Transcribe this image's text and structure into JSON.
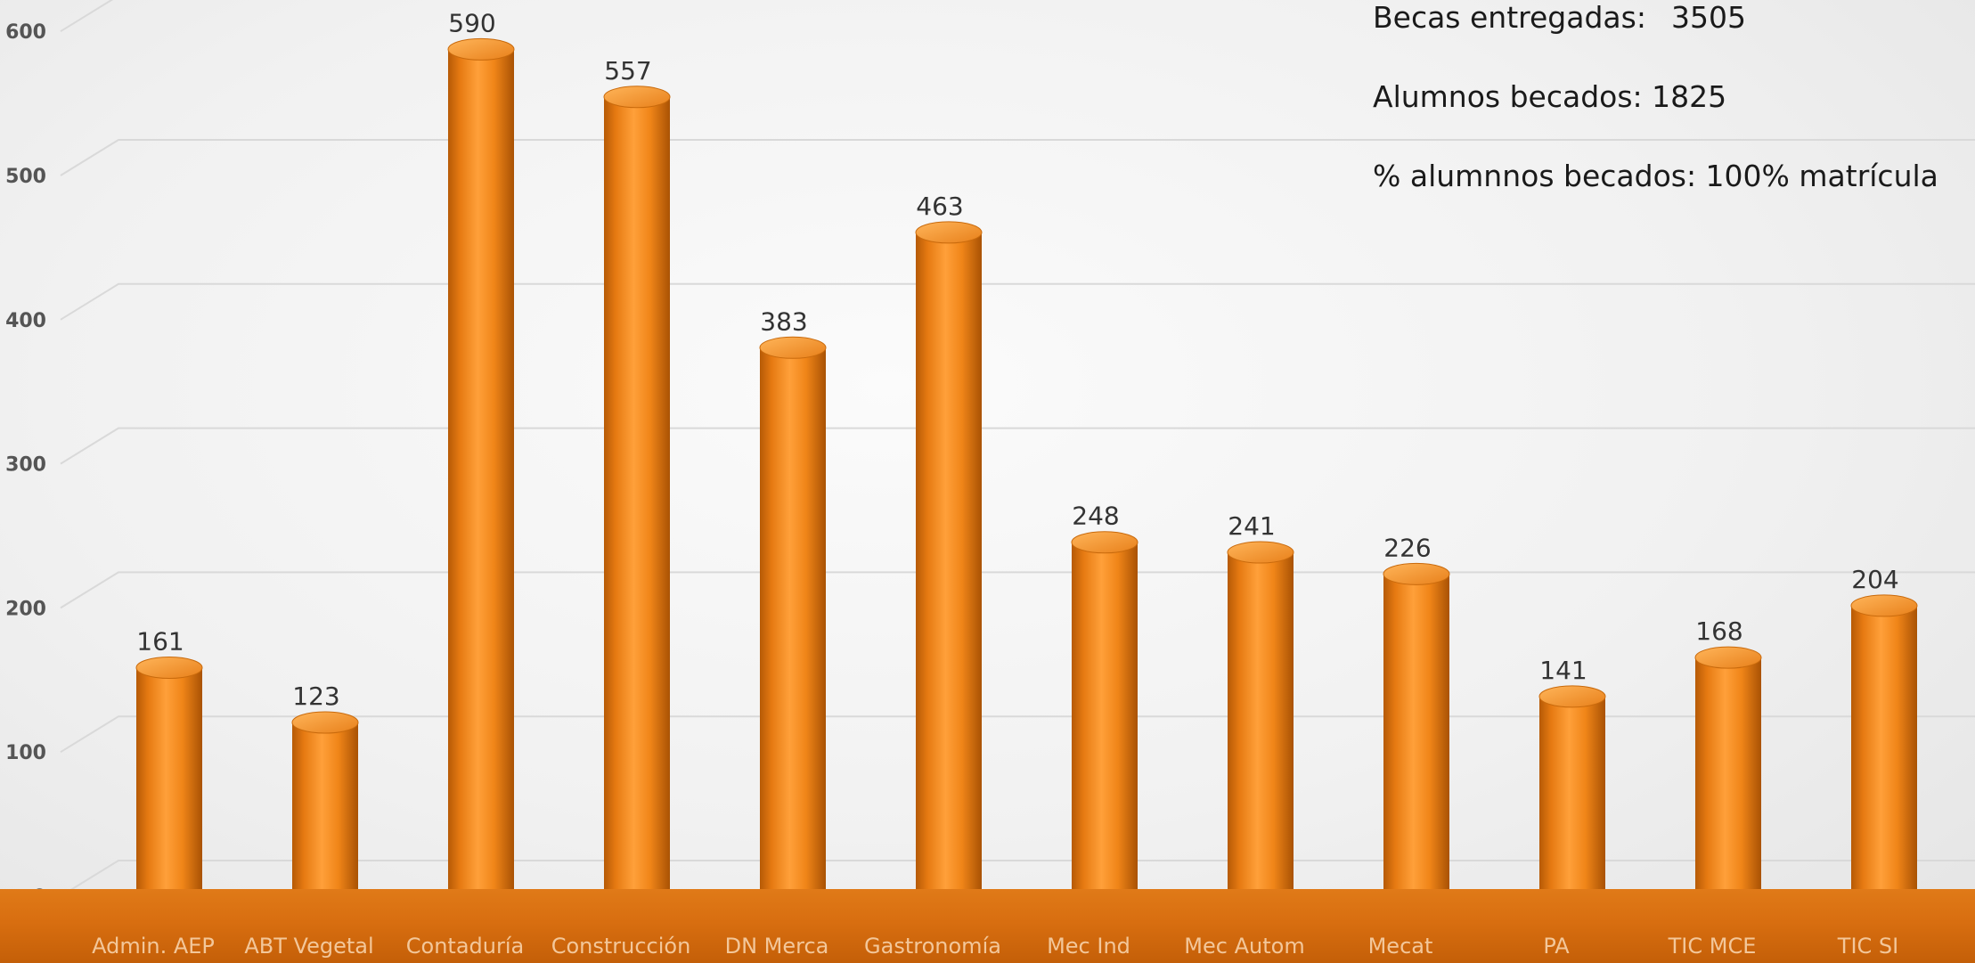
{
  "stats": {
    "becas_label": "Becas entregadas:",
    "becas_value": "3505",
    "alumnos": "Alumnos becados: 1825",
    "porcentaje": "% alumnnos becados: 100% matrícula"
  },
  "colors": {
    "bar": "#f28a1e",
    "floor": "#d86e10",
    "grid": "#d9d9d9"
  },
  "chart_data": {
    "type": "bar",
    "categories": [
      "Admin. AEP",
      "ABT Vegetal",
      "Contaduría",
      "Construcción",
      "DN Merca",
      "Gastronomía",
      "Mec Ind",
      "Mec Autom",
      "Mecat",
      "PA",
      "TIC MCE",
      "TIC SI"
    ],
    "values": [
      161,
      123,
      590,
      557,
      383,
      463,
      248,
      241,
      226,
      141,
      168,
      204
    ],
    "title": "",
    "xlabel": "",
    "ylabel": "",
    "ylim": [
      0,
      600
    ],
    "yticks": [
      0,
      100,
      200,
      300,
      400,
      500,
      600
    ],
    "grid": true,
    "data_labels": true
  }
}
